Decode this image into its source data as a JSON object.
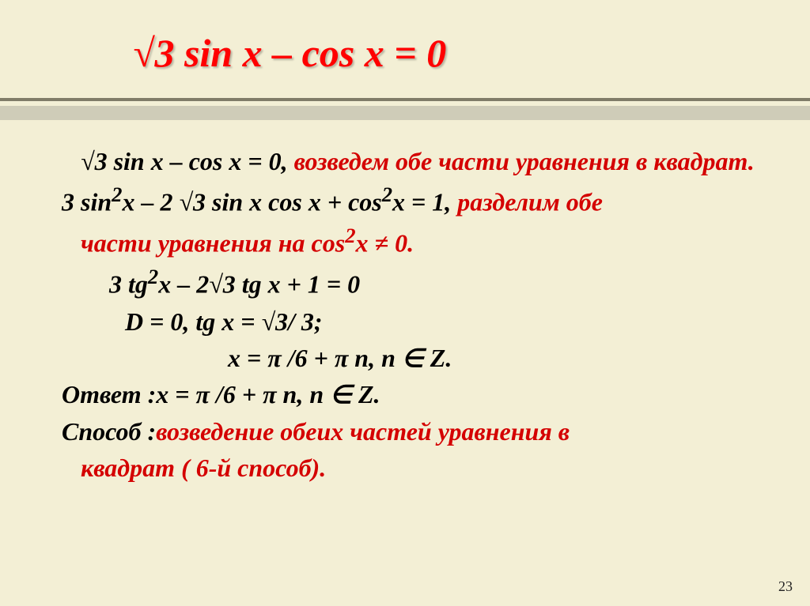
{
  "title": "√3 sin x – cos x = 0",
  "lines": {
    "l1a": "√3 sin x – cos x = 0, ",
    "l1b": "возведем обе части уравнения в квадрат.",
    "l2a": "3 sin",
    "l2sup1": "2",
    "l2b": "x – 2 √3 sin x cos x + cos",
    "l2sup2": "2",
    "l2c": "x = 1, ",
    "l2d": "разделим обе",
    "l3a": "части уравнения на cos",
    "l3sup": "2",
    "l3b": "x ≠ 0.",
    "l4a": "3 tg",
    "l4sup1": "2",
    "l4b": "x – 2√3 tg x + 1 = 0",
    "l5": "D = 0,   tg x =  √3/ 3;",
    "l6": "x = π /6 + π n,   n  ∈ Z.",
    "l7a": "Ответ :",
    "l7b": "x =  π /6 + π n,   n  ∈   Z.",
    "l8a": "Способ :",
    "l8b": "возведение обеих частей уравнения в",
    "l9": "квадрат ( 6-й способ)."
  },
  "colors": {
    "title": "#ff0000",
    "highlight": "#d40000",
    "text": "#000000",
    "background": "#f3efd5",
    "bar": "#cfccb8",
    "line": "#807c68"
  },
  "page_number": "23"
}
